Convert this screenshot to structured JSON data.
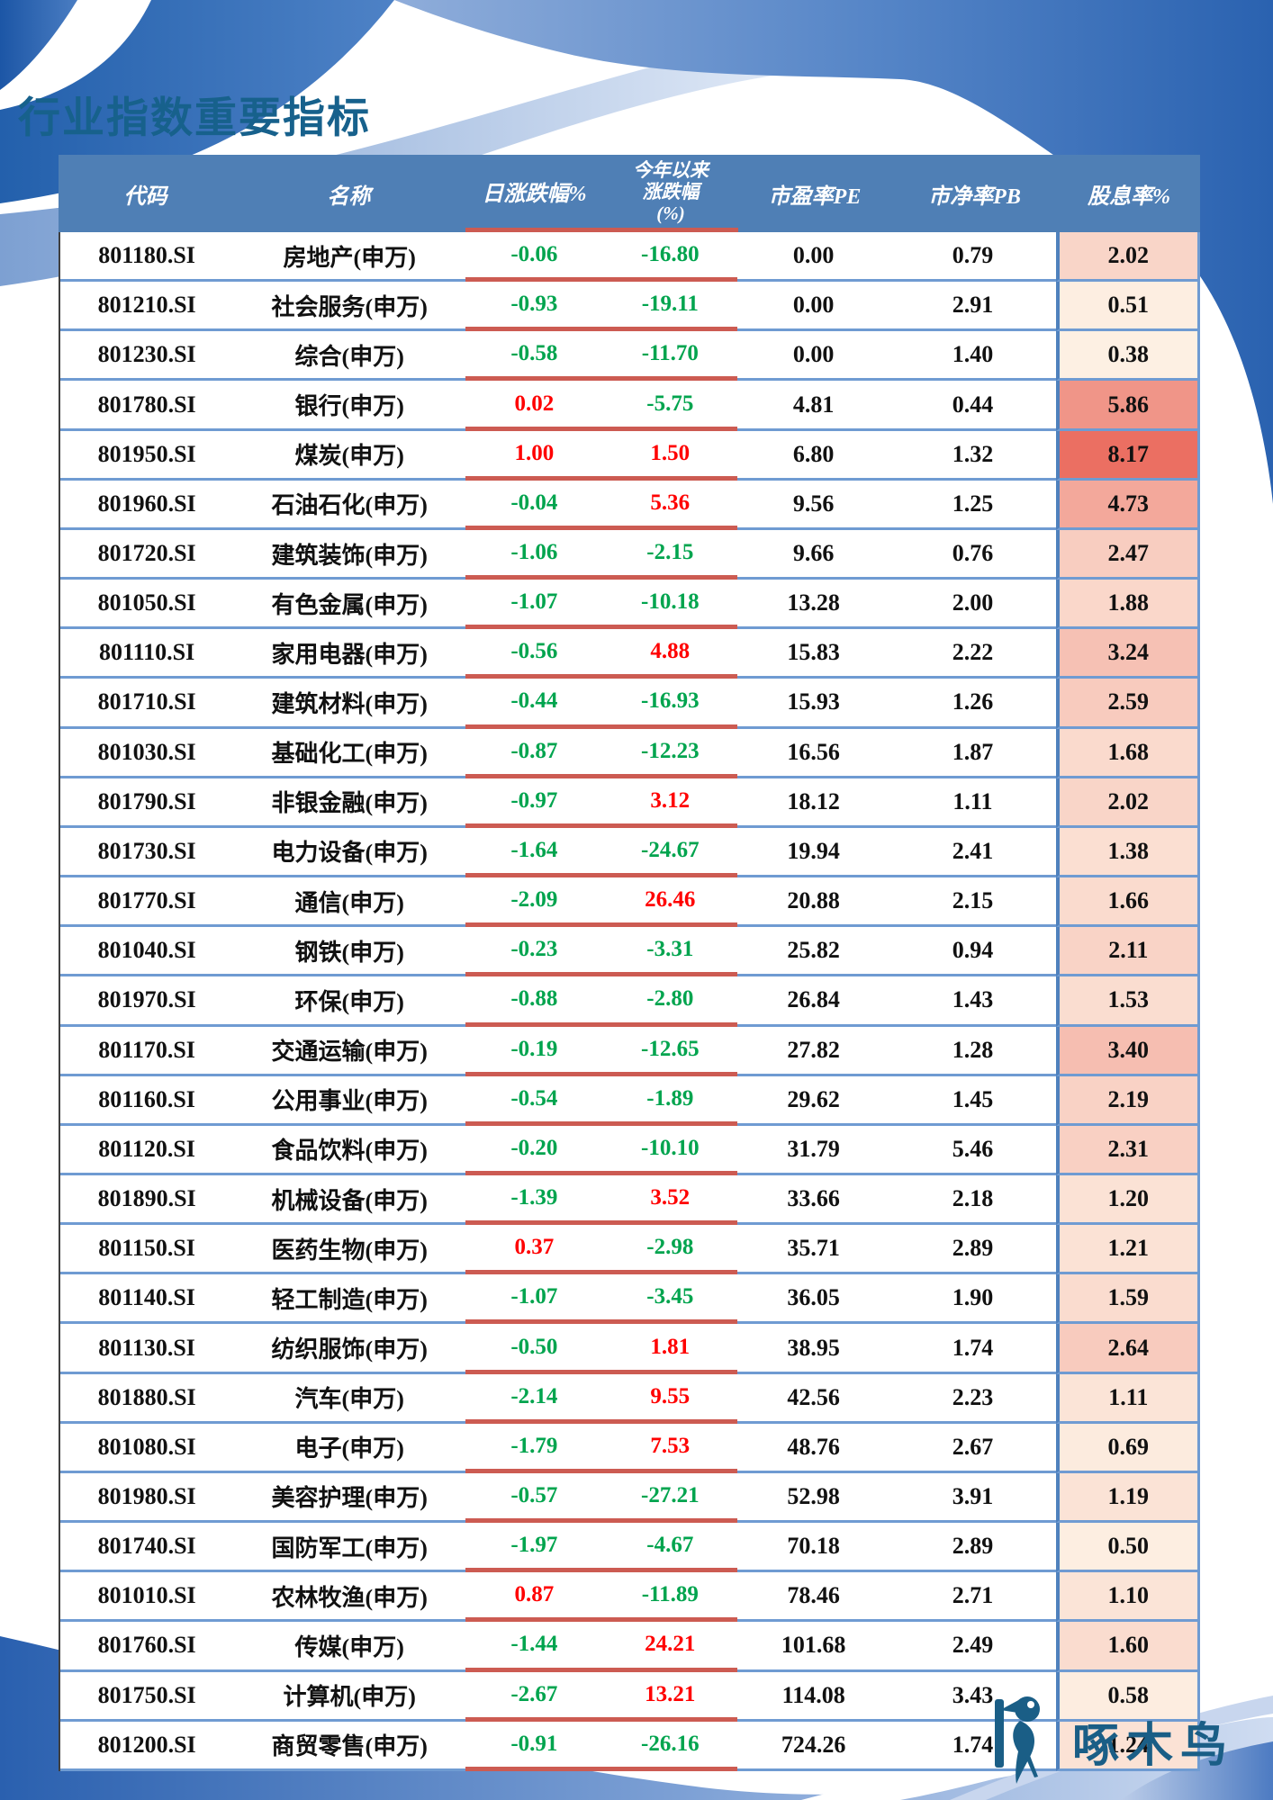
{
  "page": {
    "title": "行业指数重要指标",
    "logo_text": "啄木鸟"
  },
  "table": {
    "columns": [
      {
        "key": "code",
        "label": "代码"
      },
      {
        "key": "name",
        "label": "名称"
      },
      {
        "key": "day_chg",
        "label": "日涨跌幅%"
      },
      {
        "key": "ytd_chg",
        "label": "今年以来\n涨跌幅\n(%)"
      },
      {
        "key": "pe",
        "label": "市盈率PE"
      },
      {
        "key": "pb",
        "label": "市净率PB"
      },
      {
        "key": "div_yield",
        "label": "股息率%"
      }
    ],
    "rows": [
      {
        "code": "801180.SI",
        "name": "房地产(申万)",
        "day_chg": "-0.06",
        "ytd_chg": "-16.80",
        "pe": "0.00",
        "pb": "0.79",
        "div_yield": "2.02"
      },
      {
        "code": "801210.SI",
        "name": "社会服务(申万)",
        "day_chg": "-0.93",
        "ytd_chg": "-19.11",
        "pe": "0.00",
        "pb": "2.91",
        "div_yield": "0.51"
      },
      {
        "code": "801230.SI",
        "name": "综合(申万)",
        "day_chg": "-0.58",
        "ytd_chg": "-11.70",
        "pe": "0.00",
        "pb": "1.40",
        "div_yield": "0.38"
      },
      {
        "code": "801780.SI",
        "name": "银行(申万)",
        "day_chg": "0.02",
        "ytd_chg": "-5.75",
        "pe": "4.81",
        "pb": "0.44",
        "div_yield": "5.86"
      },
      {
        "code": "801950.SI",
        "name": "煤炭(申万)",
        "day_chg": "1.00",
        "ytd_chg": "1.50",
        "pe": "6.80",
        "pb": "1.32",
        "div_yield": "8.17"
      },
      {
        "code": "801960.SI",
        "name": "石油石化(申万)",
        "day_chg": "-0.04",
        "ytd_chg": "5.36",
        "pe": "9.56",
        "pb": "1.25",
        "div_yield": "4.73"
      },
      {
        "code": "801720.SI",
        "name": "建筑装饰(申万)",
        "day_chg": "-1.06",
        "ytd_chg": "-2.15",
        "pe": "9.66",
        "pb": "0.76",
        "div_yield": "2.47"
      },
      {
        "code": "801050.SI",
        "name": "有色金属(申万)",
        "day_chg": "-1.07",
        "ytd_chg": "-10.18",
        "pe": "13.28",
        "pb": "2.00",
        "div_yield": "1.88"
      },
      {
        "code": "801110.SI",
        "name": "家用电器(申万)",
        "day_chg": "-0.56",
        "ytd_chg": "4.88",
        "pe": "15.83",
        "pb": "2.22",
        "div_yield": "3.24"
      },
      {
        "code": "801710.SI",
        "name": "建筑材料(申万)",
        "day_chg": "-0.44",
        "ytd_chg": "-16.93",
        "pe": "15.93",
        "pb": "1.26",
        "div_yield": "2.59"
      },
      {
        "code": "801030.SI",
        "name": "基础化工(申万)",
        "day_chg": "-0.87",
        "ytd_chg": "-12.23",
        "pe": "16.56",
        "pb": "1.87",
        "div_yield": "1.68"
      },
      {
        "code": "801790.SI",
        "name": "非银金融(申万)",
        "day_chg": "-0.97",
        "ytd_chg": "3.12",
        "pe": "18.12",
        "pb": "1.11",
        "div_yield": "2.02"
      },
      {
        "code": "801730.SI",
        "name": "电力设备(申万)",
        "day_chg": "-1.64",
        "ytd_chg": "-24.67",
        "pe": "19.94",
        "pb": "2.41",
        "div_yield": "1.38"
      },
      {
        "code": "801770.SI",
        "name": "通信(申万)",
        "day_chg": "-2.09",
        "ytd_chg": "26.46",
        "pe": "20.88",
        "pb": "2.15",
        "div_yield": "1.66"
      },
      {
        "code": "801040.SI",
        "name": "钢铁(申万)",
        "day_chg": "-0.23",
        "ytd_chg": "-3.31",
        "pe": "25.82",
        "pb": "0.94",
        "div_yield": "2.11"
      },
      {
        "code": "801970.SI",
        "name": "环保(申万)",
        "day_chg": "-0.88",
        "ytd_chg": "-2.80",
        "pe": "26.84",
        "pb": "1.43",
        "div_yield": "1.53"
      },
      {
        "code": "801170.SI",
        "name": "交通运输(申万)",
        "day_chg": "-0.19",
        "ytd_chg": "-12.65",
        "pe": "27.82",
        "pb": "1.28",
        "div_yield": "3.40"
      },
      {
        "code": "801160.SI",
        "name": "公用事业(申万)",
        "day_chg": "-0.54",
        "ytd_chg": "-1.89",
        "pe": "29.62",
        "pb": "1.45",
        "div_yield": "2.19"
      },
      {
        "code": "801120.SI",
        "name": "食品饮料(申万)",
        "day_chg": "-0.20",
        "ytd_chg": "-10.10",
        "pe": "31.79",
        "pb": "5.46",
        "div_yield": "2.31"
      },
      {
        "code": "801890.SI",
        "name": "机械设备(申万)",
        "day_chg": "-1.39",
        "ytd_chg": "3.52",
        "pe": "33.66",
        "pb": "2.18",
        "div_yield": "1.20"
      },
      {
        "code": "801150.SI",
        "name": "医药生物(申万)",
        "day_chg": "0.37",
        "ytd_chg": "-2.98",
        "pe": "35.71",
        "pb": "2.89",
        "div_yield": "1.21"
      },
      {
        "code": "801140.SI",
        "name": "轻工制造(申万)",
        "day_chg": "-1.07",
        "ytd_chg": "-3.45",
        "pe": "36.05",
        "pb": "1.90",
        "div_yield": "1.59"
      },
      {
        "code": "801130.SI",
        "name": "纺织服饰(申万)",
        "day_chg": "-0.50",
        "ytd_chg": "1.81",
        "pe": "38.95",
        "pb": "1.74",
        "div_yield": "2.64"
      },
      {
        "code": "801880.SI",
        "name": "汽车(申万)",
        "day_chg": "-2.14",
        "ytd_chg": "9.55",
        "pe": "42.56",
        "pb": "2.23",
        "div_yield": "1.11"
      },
      {
        "code": "801080.SI",
        "name": "电子(申万)",
        "day_chg": "-1.79",
        "ytd_chg": "7.53",
        "pe": "48.76",
        "pb": "2.67",
        "div_yield": "0.69"
      },
      {
        "code": "801980.SI",
        "name": "美容护理(申万)",
        "day_chg": "-0.57",
        "ytd_chg": "-27.21",
        "pe": "52.98",
        "pb": "3.91",
        "div_yield": "1.19"
      },
      {
        "code": "801740.SI",
        "name": "国防军工(申万)",
        "day_chg": "-1.97",
        "ytd_chg": "-4.67",
        "pe": "70.18",
        "pb": "2.89",
        "div_yield": "0.50"
      },
      {
        "code": "801010.SI",
        "name": "农林牧渔(申万)",
        "day_chg": "0.87",
        "ytd_chg": "-11.89",
        "pe": "78.46",
        "pb": "2.71",
        "div_yield": "1.10"
      },
      {
        "code": "801760.SI",
        "name": "传媒(申万)",
        "day_chg": "-1.44",
        "ytd_chg": "24.21",
        "pe": "101.68",
        "pb": "2.49",
        "div_yield": "1.60"
      },
      {
        "code": "801750.SI",
        "name": "计算机(申万)",
        "day_chg": "-2.67",
        "ytd_chg": "13.21",
        "pe": "114.08",
        "pb": "3.43",
        "div_yield": "0.58"
      },
      {
        "code": "801200.SI",
        "name": "商贸零售(申万)",
        "day_chg": "-0.91",
        "ytd_chg": "-26.16",
        "pe": "724.26",
        "pb": "1.74",
        "div_yield": "1.24"
      }
    ],
    "style": {
      "header_bg": "#4F7FB5",
      "row_separator": "#6F9BD2",
      "red_underline": "#CC5B52",
      "column_divider": "#4F81BD",
      "positive_text": "#FF0000",
      "negative_text": "#00A44E",
      "value_text": "#111111",
      "title_color": "#17618C",
      "logo_color": "#1A5E86",
      "heat_min_value": 0.38,
      "heat_max_value": 8.17,
      "heat_min_color": "#FDF0E3",
      "heat_max_color": "#EB6F62"
    }
  }
}
